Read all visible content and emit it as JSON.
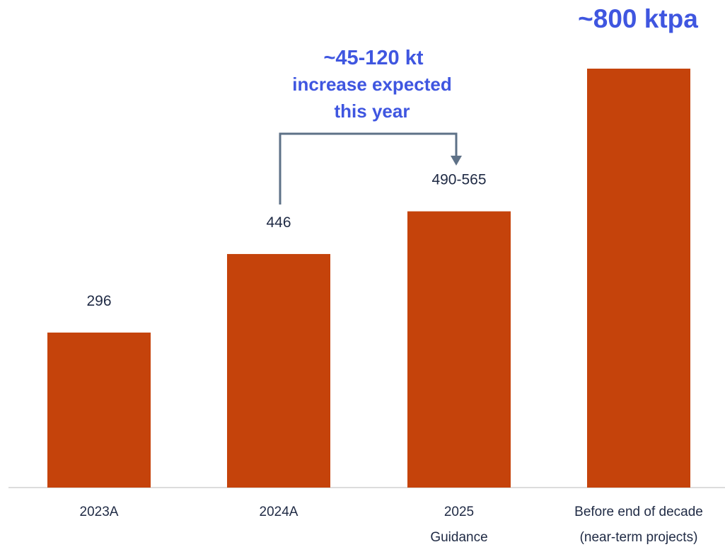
{
  "chart_data": {
    "type": "bar",
    "categories": [
      "2023A",
      "2024A",
      "2025 Guidance",
      "Before end of decade (near-term projects)"
    ],
    "category_lines": [
      [
        "2023A"
      ],
      [
        "2024A"
      ],
      [
        "2025",
        "Guidance"
      ],
      [
        "Before end of decade",
        "(near-term projects)"
      ]
    ],
    "values": [
      296,
      446,
      527.5,
      800
    ],
    "value_labels": [
      "296",
      "446",
      "490-565",
      ""
    ],
    "ylim": [
      0,
      800
    ],
    "grid": false,
    "legend": "none",
    "annotations": {
      "increase_line1": "~45-120 kt",
      "increase_line2": "increase expected",
      "increase_line3": "this year",
      "top_label": "~800 ktpa"
    }
  },
  "colors": {
    "bar": "#c5430b",
    "annotation": "#3f56e0",
    "arrow": "#5e7187",
    "axis": "#d0d0d0",
    "text": "#1f2a44"
  }
}
